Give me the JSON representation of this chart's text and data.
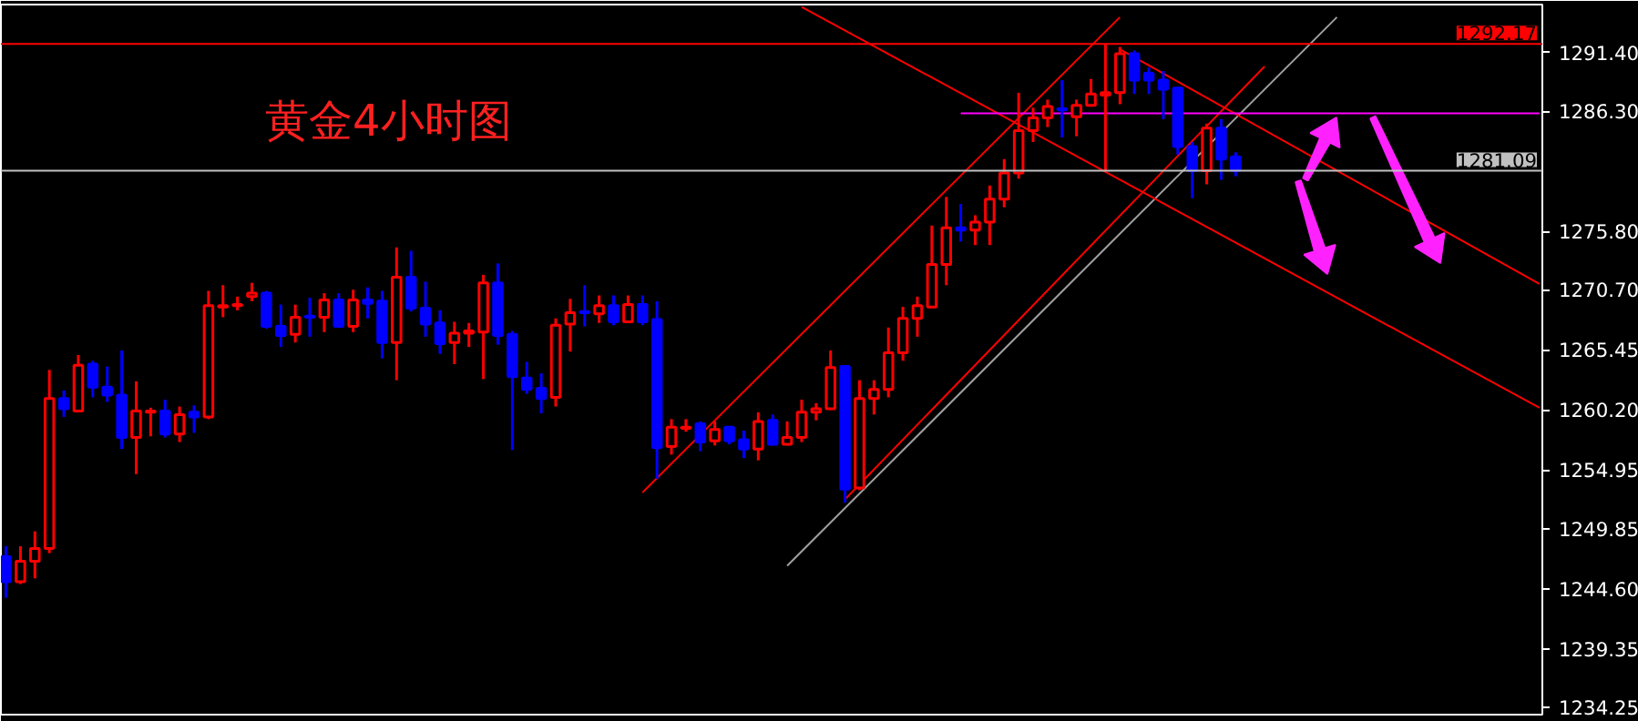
{
  "chart_data": {
    "type": "candlestick",
    "title": "黄金4小时图",
    "categories": [
      null,
      null,
      null,
      null,
      null,
      null,
      null,
      null,
      null,
      null,
      null,
      null,
      null,
      null,
      null,
      null,
      null,
      null,
      null,
      null,
      null,
      null,
      null,
      null,
      null,
      null,
      null,
      null,
      null,
      null,
      null,
      null,
      null,
      null,
      null,
      null,
      null,
      null,
      null,
      null,
      null,
      null,
      null,
      null,
      null,
      null,
      null,
      null,
      null,
      null,
      null,
      null,
      null,
      null,
      null,
      null,
      null,
      null,
      null,
      null,
      null,
      null,
      null,
      null,
      null,
      null,
      null,
      null,
      null,
      null,
      null,
      null,
      null,
      null,
      null,
      null,
      null,
      null,
      null,
      null,
      null,
      null,
      null,
      null,
      null,
      null,
      null,
      null,
      null,
      null,
      null,
      null,
      null,
      null,
      null,
      null,
      null,
      null,
      null,
      null,
      null,
      null,
      null,
      null,
      null,
      null,
      null
    ],
    "ohlc": [
      [
        1247.4,
        1248.3,
        1243.8,
        1245.2
      ],
      [
        1245.2,
        1248.3,
        1245.0,
        1247.0
      ],
      [
        1247.0,
        1249.6,
        1245.5,
        1248.1
      ],
      [
        1248.1,
        1263.7,
        1247.7,
        1261.2
      ],
      [
        1261.2,
        1261.9,
        1259.6,
        1260.3
      ],
      [
        1260.1,
        1265.0,
        1260.0,
        1264.1
      ],
      [
        1264.2,
        1264.5,
        1261.3,
        1262.2
      ],
      [
        1262.2,
        1264.0,
        1260.9,
        1261.5
      ],
      [
        1261.5,
        1265.4,
        1256.8,
        1257.8
      ],
      [
        1257.8,
        1262.7,
        1254.6,
        1260.1
      ],
      [
        1260.0,
        1260.4,
        1257.9,
        1260.1
      ],
      [
        1260.1,
        1261.1,
        1257.8,
        1258.1
      ],
      [
        1258.1,
        1260.5,
        1257.4,
        1259.8
      ],
      [
        1260.0,
        1260.6,
        1258.2,
        1259.6
      ],
      [
        1259.6,
        1270.6,
        1259.4,
        1269.3
      ],
      [
        1269.2,
        1271.1,
        1268.3,
        1269.3
      ],
      [
        1269.3,
        1270.1,
        1268.9,
        1269.4
      ],
      [
        1270.1,
        1271.3,
        1269.7,
        1270.4
      ],
      [
        1270.4,
        1270.6,
        1267.3,
        1267.5
      ],
      [
        1267.5,
        1269.4,
        1265.7,
        1266.7
      ],
      [
        1266.8,
        1269.4,
        1266.1,
        1268.3
      ],
      [
        1268.4,
        1270.0,
        1266.6,
        1268.3
      ],
      [
        1268.3,
        1270.4,
        1267.0,
        1269.8
      ],
      [
        1269.8,
        1270.4,
        1267.4,
        1267.5
      ],
      [
        1267.5,
        1270.7,
        1267.0,
        1269.8
      ],
      [
        1269.8,
        1270.9,
        1268.2,
        1269.5
      ],
      [
        1269.7,
        1270.6,
        1264.7,
        1266.1
      ],
      [
        1266.1,
        1274.4,
        1262.8,
        1271.8
      ],
      [
        1271.8,
        1274.1,
        1268.8,
        1269.1
      ],
      [
        1269.1,
        1271.4,
        1266.6,
        1267.7
      ],
      [
        1267.8,
        1268.9,
        1265.1,
        1266.0
      ],
      [
        1266.1,
        1267.9,
        1264.2,
        1266.9
      ],
      [
        1266.9,
        1267.8,
        1265.7,
        1267.1
      ],
      [
        1267.0,
        1272.0,
        1262.9,
        1271.3
      ],
      [
        1271.3,
        1273.0,
        1265.9,
        1266.7
      ],
      [
        1266.8,
        1267.1,
        1256.7,
        1263.1
      ],
      [
        1263.0,
        1264.4,
        1261.6,
        1262.0
      ],
      [
        1262.1,
        1263.4,
        1259.9,
        1261.2
      ],
      [
        1261.3,
        1268.2,
        1260.5,
        1267.6
      ],
      [
        1267.7,
        1269.9,
        1265.3,
        1268.7
      ],
      [
        1268.8,
        1271.1,
        1267.5,
        1268.7
      ],
      [
        1268.6,
        1270.2,
        1267.8,
        1269.3
      ],
      [
        1269.3,
        1270.2,
        1267.6,
        1267.9
      ],
      [
        1267.9,
        1270.2,
        1267.8,
        1269.4
      ],
      [
        1269.4,
        1270.2,
        1267.6,
        1267.9
      ],
      [
        1268.1,
        1269.7,
        1254.2,
        1256.9
      ],
      [
        1257.0,
        1259.4,
        1256.3,
        1258.7
      ],
      [
        1258.6,
        1259.4,
        1258.3,
        1258.7
      ],
      [
        1259.0,
        1259.2,
        1256.6,
        1257.4
      ],
      [
        1257.5,
        1259.2,
        1257.1,
        1258.5
      ],
      [
        1258.7,
        1258.8,
        1257.2,
        1257.5
      ],
      [
        1257.6,
        1258.4,
        1256.0,
        1256.8
      ],
      [
        1256.8,
        1260.0,
        1255.8,
        1259.2
      ],
      [
        1259.3,
        1259.8,
        1257.1,
        1257.2
      ],
      [
        1257.2,
        1259.2,
        1257.1,
        1257.8
      ],
      [
        1257.8,
        1261.1,
        1257.4,
        1260.0
      ],
      [
        1260.0,
        1260.8,
        1259.3,
        1260.3
      ],
      [
        1260.3,
        1265.4,
        1260.2,
        1263.9
      ],
      [
        1264.0,
        1264.1,
        1252.1,
        1253.3
      ],
      [
        1253.4,
        1262.8,
        1253.2,
        1261.2
      ],
      [
        1261.2,
        1262.8,
        1259.8,
        1262.0
      ],
      [
        1262.0,
        1267.4,
        1261.3,
        1265.2
      ],
      [
        1265.2,
        1269.2,
        1264.5,
        1268.2
      ],
      [
        1268.2,
        1270.1,
        1266.6,
        1269.3
      ],
      [
        1269.2,
        1276.3,
        1269.1,
        1272.9
      ],
      [
        1272.9,
        1278.8,
        1271.1,
        1276.1
      ],
      [
        1276.1,
        1278.2,
        1274.9,
        1275.9
      ],
      [
        1275.9,
        1277.2,
        1274.6,
        1276.6
      ],
      [
        1276.6,
        1279.8,
        1274.6,
        1278.6
      ],
      [
        1278.6,
        1282.1,
        1277.9,
        1280.9
      ],
      [
        1280.9,
        1287.9,
        1280.4,
        1284.6
      ],
      [
        1284.6,
        1286.6,
        1283.6,
        1285.7
      ],
      [
        1285.7,
        1287.3,
        1284.9,
        1286.7
      ],
      [
        1286.5,
        1289.0,
        1284.0,
        1286.4
      ],
      [
        1285.8,
        1287.3,
        1284.1,
        1286.8
      ],
      [
        1286.8,
        1289.1,
        1286.7,
        1287.8
      ],
      [
        1287.7,
        1292.2,
        1281.1,
        1287.9
      ],
      [
        1287.9,
        1291.9,
        1286.9,
        1291.3
      ],
      [
        1291.3,
        1291.6,
        1287.8,
        1289.0
      ],
      [
        1289.6,
        1290.1,
        1287.8,
        1289.0
      ],
      [
        1289.0,
        1289.8,
        1285.6,
        1288.2
      ],
      [
        1288.3,
        1288.4,
        1282.5,
        1283.2
      ],
      [
        1283.2,
        1283.6,
        1278.7,
        1281.1
      ],
      [
        1281.1,
        1285.2,
        1279.9,
        1284.8
      ],
      [
        1284.8,
        1285.6,
        1280.3,
        1282.1
      ],
      [
        1282.3,
        1282.7,
        1280.6,
        1281.1
      ],
      null,
      null,
      null,
      null,
      null,
      null,
      null,
      null,
      null,
      null,
      null,
      null,
      null,
      null,
      null,
      null,
      null,
      null,
      null,
      null,
      null
    ],
    "series": [
      {
        "type": "line",
        "color": "#ff0000",
        "values": [
          null,
          null,
          null,
          null,
          null,
          null,
          null,
          null,
          null,
          null,
          null,
          null,
          null,
          null,
          null,
          null,
          null,
          null,
          null,
          null,
          null,
          null,
          null,
          null,
          null,
          null,
          null,
          null,
          null,
          null,
          null,
          null,
          null,
          null,
          null,
          null,
          null,
          null,
          null,
          null,
          null,
          null,
          null,
          null,
          1253.0,
          null,
          null,
          null,
          null,
          null,
          null,
          null,
          null,
          null,
          null,
          null,
          null,
          null,
          null,
          null,
          null,
          null,
          null,
          null,
          null,
          null,
          null,
          null,
          null,
          null,
          null,
          null,
          null,
          null,
          null,
          null,
          null,
          1294.5,
          null,
          null,
          null,
          null,
          null,
          null,
          null,
          null,
          null,
          null,
          null,
          null,
          null,
          null,
          null,
          null,
          null,
          null,
          null,
          null,
          null,
          null,
          null,
          null,
          null,
          null,
          null,
          null,
          null
        ]
      },
      {
        "type": "line",
        "color": "#a0a0a0",
        "values": [
          null,
          null,
          null,
          null,
          null,
          null,
          null,
          null,
          null,
          null,
          null,
          null,
          null,
          null,
          null,
          null,
          null,
          null,
          null,
          null,
          null,
          null,
          null,
          null,
          null,
          null,
          null,
          null,
          null,
          null,
          null,
          null,
          null,
          null,
          null,
          null,
          null,
          null,
          null,
          null,
          null,
          null,
          null,
          null,
          null,
          null,
          null,
          null,
          null,
          null,
          null,
          null,
          null,
          null,
          1246.6,
          null,
          null,
          null,
          null,
          null,
          null,
          null,
          null,
          null,
          null,
          null,
          null,
          null,
          null,
          null,
          null,
          null,
          null,
          null,
          null,
          null,
          null,
          null,
          null,
          null,
          null,
          null,
          null,
          null,
          null,
          null,
          null,
          null,
          null,
          null,
          null,
          null,
          1294.5,
          null,
          null,
          null,
          null,
          null,
          null,
          null,
          null,
          null,
          null,
          null,
          null,
          null,
          null
        ]
      },
      {
        "type": "line",
        "color": "#ff0000",
        "values": [
          null,
          null,
          null,
          null,
          null,
          null,
          null,
          null,
          null,
          null,
          null,
          null,
          null,
          null,
          null,
          null,
          null,
          null,
          null,
          null,
          null,
          null,
          null,
          null,
          null,
          null,
          null,
          null,
          null,
          null,
          null,
          null,
          null,
          null,
          null,
          null,
          null,
          null,
          null,
          null,
          null,
          null,
          null,
          null,
          null,
          null,
          null,
          null,
          null,
          null,
          null,
          null,
          null,
          null,
          null,
          null,
          null,
          null,
          1252.4,
          null,
          null,
          null,
          null,
          null,
          null,
          null,
          null,
          null,
          null,
          null,
          null,
          null,
          null,
          null,
          null,
          null,
          null,
          null,
          null,
          null,
          null,
          null,
          null,
          null,
          null,
          null,
          null,
          1290.2,
          null,
          null,
          null,
          null,
          null,
          null,
          null,
          null,
          null,
          null,
          null,
          null,
          null,
          null,
          null,
          null,
          null,
          null,
          null
        ]
      },
      {
        "type": "line",
        "color": "#ff0000",
        "values": [
          null,
          null,
          null,
          null,
          null,
          null,
          null,
          null,
          null,
          null,
          null,
          null,
          null,
          null,
          null,
          null,
          null,
          null,
          null,
          null,
          null,
          null,
          null,
          null,
          null,
          null,
          null,
          null,
          null,
          null,
          null,
          null,
          null,
          null,
          null,
          null,
          null,
          null,
          null,
          null,
          null,
          null,
          null,
          null,
          null,
          null,
          null,
          null,
          null,
          null,
          null,
          null,
          null,
          null,
          null,
          1295.4,
          null,
          null,
          null,
          null,
          null,
          null,
          null,
          null,
          null,
          null,
          null,
          null,
          null,
          null,
          null,
          null,
          null,
          null,
          null,
          null,
          null,
          null,
          null,
          null,
          null,
          null,
          null,
          null,
          null,
          null,
          null,
          null,
          null,
          null,
          null,
          null,
          null,
          null,
          null,
          null,
          null,
          null,
          null,
          null,
          null,
          null,
          null,
          null,
          null,
          null,
          1260.4
        ]
      },
      {
        "type": "line",
        "color": "#ff0000",
        "values": [
          null,
          null,
          null,
          null,
          null,
          null,
          null,
          null,
          null,
          null,
          null,
          null,
          null,
          null,
          null,
          null,
          null,
          null,
          null,
          null,
          null,
          null,
          null,
          null,
          null,
          null,
          null,
          null,
          null,
          null,
          null,
          null,
          null,
          null,
          null,
          null,
          null,
          null,
          null,
          null,
          null,
          null,
          null,
          null,
          null,
          null,
          null,
          null,
          null,
          null,
          null,
          null,
          null,
          null,
          null,
          null,
          null,
          null,
          null,
          null,
          null,
          null,
          null,
          null,
          null,
          null,
          null,
          null,
          null,
          null,
          null,
          null,
          null,
          null,
          null,
          null,
          null,
          1291.7,
          null,
          null,
          null,
          null,
          null,
          null,
          null,
          null,
          null,
          null,
          null,
          null,
          null,
          null,
          null,
          null,
          null,
          null,
          null,
          null,
          null,
          null,
          null,
          null,
          null,
          null,
          null,
          null,
          1271.2
        ]
      },
      {
        "type": "line",
        "color": "#ff00ff",
        "values": [
          null,
          null,
          null,
          null,
          null,
          null,
          null,
          null,
          null,
          null,
          null,
          null,
          null,
          null,
          null,
          null,
          null,
          null,
          null,
          null,
          null,
          null,
          null,
          null,
          null,
          null,
          null,
          null,
          null,
          null,
          null,
          null,
          null,
          null,
          null,
          null,
          null,
          null,
          null,
          null,
          null,
          null,
          null,
          null,
          null,
          null,
          null,
          null,
          null,
          null,
          null,
          null,
          null,
          null,
          null,
          null,
          null,
          null,
          null,
          null,
          null,
          null,
          null,
          null,
          null,
          null,
          1286.1,
          null,
          null,
          null,
          null,
          null,
          null,
          null,
          null,
          null,
          null,
          null,
          null,
          null,
          null,
          null,
          null,
          null,
          null,
          null,
          null,
          null,
          null,
          null,
          null,
          null,
          null,
          null,
          null,
          null,
          null,
          null,
          null,
          null,
          null,
          null,
          null,
          null,
          null,
          null,
          1286.1
        ]
      }
    ],
    "ylim": [
      1233.6,
      1295.6
    ],
    "yticks": [
      {
        "value": 1234.25,
        "label": "1234.25"
      },
      {
        "value": 1239.35,
        "label": "1239.35"
      },
      {
        "value": 1244.6,
        "label": "1244.60"
      },
      {
        "value": 1249.85,
        "label": "1249.85"
      },
      {
        "value": 1254.95,
        "label": "1254.95"
      },
      {
        "value": 1260.2,
        "label": "1260.20"
      },
      {
        "value": 1265.45,
        "label": "1265.45"
      },
      {
        "value": 1270.7,
        "label": "1270.70"
      },
      {
        "value": 1275.8,
        "label": "1275.80"
      },
      {
        "value": 1286.3,
        "label": "1286.30"
      },
      {
        "value": 1291.4,
        "label": "1291.40"
      }
    ],
    "ref_lines": [
      {
        "axis": "y",
        "value": 1292.17,
        "label": "1292.17",
        "color": "#ff0000"
      },
      {
        "axis": "y",
        "value": 1281.09,
        "label": "1281.09",
        "color": "#c0c0c0"
      }
    ],
    "tick_labels": "y",
    "grid": false
  }
}
